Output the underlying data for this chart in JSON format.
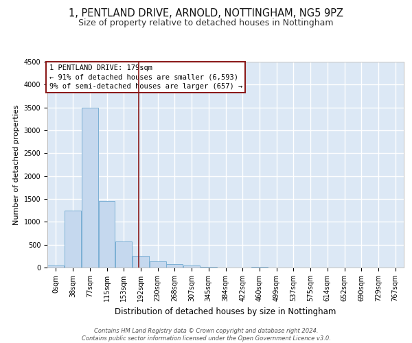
{
  "title": "1, PENTLAND DRIVE, ARNOLD, NOTTINGHAM, NG5 9PZ",
  "subtitle": "Size of property relative to detached houses in Nottingham",
  "xlabel": "Distribution of detached houses by size in Nottingham",
  "ylabel": "Number of detached properties",
  "bar_color": "#c5d8ee",
  "bar_edge_color": "#7bafd4",
  "background_color": "#dce8f5",
  "grid_color": "#ffffff",
  "bins": [
    "0sqm",
    "38sqm",
    "77sqm",
    "115sqm",
    "153sqm",
    "192sqm",
    "230sqm",
    "268sqm",
    "307sqm",
    "345sqm",
    "384sqm",
    "422sqm",
    "460sqm",
    "499sqm",
    "537sqm",
    "575sqm",
    "614sqm",
    "652sqm",
    "690sqm",
    "729sqm",
    "767sqm"
  ],
  "values": [
    50,
    1250,
    3500,
    1450,
    570,
    250,
    140,
    80,
    40,
    10,
    5,
    0,
    20,
    5,
    0,
    0,
    0,
    0,
    0,
    0,
    0
  ],
  "ylim": [
    0,
    4500
  ],
  "vline_position": 4.87,
  "annotation_line1": "1 PENTLAND DRIVE: 179sqm",
  "annotation_line2": "← 91% of detached houses are smaller (6,593)",
  "annotation_line3": "9% of semi-detached houses are larger (657) →",
  "vline_color": "#8b1a1a",
  "annotation_box_edge": "#8b1a1a",
  "footer_line1": "Contains HM Land Registry data © Crown copyright and database right 2024.",
  "footer_line2": "Contains public sector information licensed under the Open Government Licence v3.0.",
  "title_fontsize": 10.5,
  "subtitle_fontsize": 9,
  "xlabel_fontsize": 8.5,
  "ylabel_fontsize": 8,
  "tick_fontsize": 7,
  "annotation_fontsize": 7.5,
  "footer_fontsize": 6
}
